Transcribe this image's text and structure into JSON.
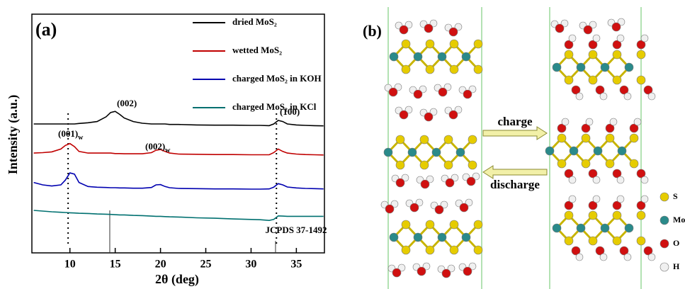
{
  "chart_data": {
    "type": "line",
    "panel_label": "(a)",
    "x_label": "2θ (deg)",
    "y_label": "Intensity (a.u.)",
    "xlim": [
      5.8,
      38.1
    ],
    "xticks": [
      10,
      15,
      20,
      25,
      30,
      35
    ],
    "ylim": [
      0,
      100
    ],
    "x": [
      6,
      7,
      8,
      9,
      9.5,
      10,
      10.5,
      11,
      12,
      13,
      14,
      14.5,
      15,
      15.5,
      16,
      17,
      18,
      19,
      19.5,
      20,
      20.5,
      21,
      22,
      24,
      26,
      28,
      30,
      31,
      32,
      32.5,
      33,
      33.5,
      34,
      35,
      36,
      37,
      38
    ],
    "series": [
      {
        "name": "dried MoS₂",
        "color": "#000000",
        "values": [
          54,
          54,
          54,
          54,
          54,
          54,
          54,
          54.2,
          54.5,
          55,
          57,
          58.8,
          59.3,
          58,
          56.5,
          55,
          54.3,
          54,
          54,
          54,
          54,
          53.8,
          53.8,
          53.6,
          53.5,
          53.5,
          53.4,
          53.4,
          53.3,
          54,
          55.5,
          55,
          54,
          53.6,
          53.4,
          53.3,
          53.2
        ]
      },
      {
        "name": "wetted MoS₂",
        "color": "#c00000",
        "values": [
          41.8,
          42,
          42.3,
          43.5,
          45,
          45.8,
          44.5,
          42.5,
          41.8,
          41.8,
          41.8,
          41.8,
          41.6,
          41.6,
          41.5,
          41.5,
          41.5,
          42,
          43,
          43.3,
          42.5,
          41.8,
          41.4,
          41.3,
          41.2,
          41.2,
          41.1,
          41.1,
          41.1,
          42,
          43.5,
          42.5,
          41.8,
          41.4,
          41.2,
          41.1,
          41
        ]
      },
      {
        "name": "charged MoS₂ in KOH",
        "color": "#0000b0",
        "values": [
          29.5,
          28.5,
          28,
          28.5,
          30.5,
          33.5,
          33,
          29.5,
          27.8,
          27.5,
          27.4,
          27.3,
          27.3,
          27.2,
          27.2,
          27.1,
          27.1,
          27.4,
          28.5,
          28.6,
          27.8,
          27.3,
          27,
          26.9,
          26.8,
          26.8,
          26.7,
          26.7,
          26.8,
          27.5,
          29,
          28.5,
          27.6,
          27.2,
          27,
          26.9,
          26.8
        ]
      },
      {
        "name": "charged MoS₂ in KCl",
        "color": "#007070",
        "values": [
          17.8,
          17.5,
          17.2,
          17,
          16.9,
          16.8,
          16.7,
          16.6,
          16.5,
          16.3,
          16.2,
          16.1,
          16,
          15.9,
          15.9,
          15.7,
          15.6,
          15.4,
          15.3,
          15.3,
          15.2,
          15.1,
          15,
          14.7,
          14.5,
          14.2,
          14,
          13.9,
          13.6,
          14,
          15.5,
          15.4,
          15.3,
          15.3,
          15.3,
          15.3,
          15.3
        ]
      }
    ],
    "annotations": [
      {
        "text": "(002)"
      },
      {
        "text": "(100)"
      },
      {
        "text": "(001)",
        "sub": "w"
      },
      {
        "text": "(002)",
        "sub": "w"
      }
    ],
    "reference_lines": [
      9.8,
      32.8
    ],
    "reference_pattern": {
      "label": "JCPDS 37-1492",
      "x": [
        14.4,
        32.7
      ],
      "values": [
        17.8,
        5
      ]
    }
  },
  "panel_b": {
    "label": "(b)",
    "arrows": [
      "charge",
      "discharge"
    ],
    "legend": [
      {
        "label": "S",
        "color": "#e6cc00"
      },
      {
        "label": "Mo",
        "color": "#2a8a8a"
      },
      {
        "label": "O",
        "color": "#d01010"
      },
      {
        "label": "H",
        "color": "#f0f0f0"
      }
    ]
  }
}
